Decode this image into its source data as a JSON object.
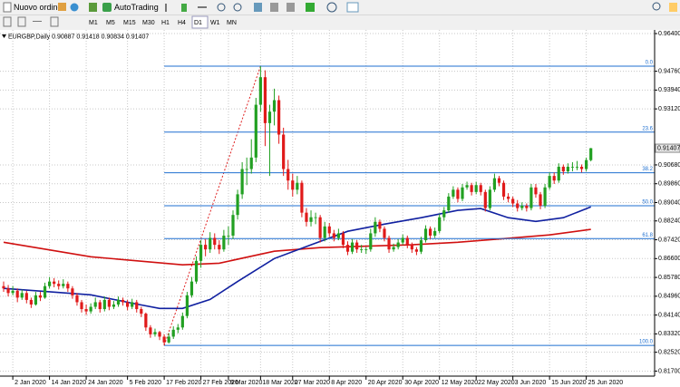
{
  "toolbar": {
    "new_order": "Nuovo ordine",
    "autotrading": "AutoTrading",
    "timeframes": [
      "M1",
      "M5",
      "M15",
      "M30",
      "H1",
      "H4",
      "D1",
      "W1",
      "MN"
    ]
  },
  "chart_data": {
    "type": "candlestick",
    "symbol": "EURGBP,Daily",
    "categories": [
      null,
      null,
      "2 Jan 2020",
      null,
      null,
      null,
      null,
      null,
      null,
      null,
      "14 Jan 2020",
      null,
      null,
      null,
      null,
      null,
      null,
      null,
      "24 Jan 2020",
      null,
      null,
      null,
      null,
      null,
      null,
      null,
      null,
      "5 Feb 2020",
      null,
      null,
      null,
      null,
      null,
      null,
      null,
      "17 Feb 2020",
      null,
      null,
      null,
      null,
      null,
      null,
      null,
      "27 Feb 2020",
      null,
      null,
      null,
      null,
      null,
      "9 Mar 2020",
      null,
      null,
      null,
      null,
      null,
      null,
      "18 Mar 2020",
      null,
      null,
      null,
      null,
      null,
      null,
      "27 Mar 2020",
      null,
      null,
      null,
      null,
      null,
      null,
      null,
      "8 Apr 2020",
      null,
      null,
      null,
      null,
      null,
      null,
      null,
      "20 Apr 2020",
      null,
      null,
      null,
      null,
      null,
      null,
      null,
      "30 Apr 2020",
      null,
      null,
      null,
      null,
      null,
      null,
      null,
      "12 May 2020",
      null,
      null,
      null,
      null,
      null,
      null,
      null,
      "22 May 2020",
      null,
      null,
      null,
      null,
      null,
      null,
      null,
      "3 Jun 2020",
      null,
      null,
      null,
      null,
      null,
      null,
      null,
      "15 Jun 2020",
      null,
      null,
      null,
      null,
      null,
      null,
      null,
      "25 Jun 2020",
      null
    ],
    "candles": [
      [
        0.854,
        0.856,
        0.8515,
        0.853
      ],
      [
        0.853,
        0.8545,
        0.8495,
        0.851
      ],
      [
        0.851,
        0.854,
        0.85,
        0.852
      ],
      [
        0.852,
        0.853,
        0.847,
        0.849
      ],
      [
        0.849,
        0.8525,
        0.848,
        0.851
      ],
      [
        0.851,
        0.852,
        0.8465,
        0.848
      ],
      [
        0.848,
        0.849,
        0.8445,
        0.846
      ],
      [
        0.846,
        0.8515,
        0.8455,
        0.85
      ],
      [
        0.85,
        0.8515,
        0.8475,
        0.849
      ],
      [
        0.849,
        0.8555,
        0.8485,
        0.854
      ],
      [
        0.854,
        0.858,
        0.853,
        0.856
      ],
      [
        0.856,
        0.8575,
        0.8535,
        0.855
      ],
      [
        0.855,
        0.8565,
        0.8525,
        0.854
      ],
      [
        0.854,
        0.857,
        0.853,
        0.855
      ],
      [
        0.855,
        0.856,
        0.8515,
        0.853
      ],
      [
        0.853,
        0.854,
        0.8485,
        0.85
      ],
      [
        0.85,
        0.851,
        0.8455,
        0.847
      ],
      [
        0.847,
        0.848,
        0.8425,
        0.844
      ],
      [
        0.844,
        0.846,
        0.8415,
        0.843
      ],
      [
        0.843,
        0.8465,
        0.842,
        0.845
      ],
      [
        0.845,
        0.849,
        0.844,
        0.847
      ],
      [
        0.847,
        0.848,
        0.8425,
        0.844
      ],
      [
        0.844,
        0.8495,
        0.843,
        0.848
      ],
      [
        0.848,
        0.849,
        0.8435,
        0.845
      ],
      [
        0.845,
        0.8475,
        0.844,
        0.846
      ],
      [
        0.846,
        0.8495,
        0.845,
        0.848
      ],
      [
        0.848,
        0.849,
        0.8455,
        0.847
      ],
      [
        0.847,
        0.848,
        0.8435,
        0.845
      ],
      [
        0.845,
        0.8485,
        0.844,
        0.847
      ],
      [
        0.847,
        0.848,
        0.8425,
        0.844
      ],
      [
        0.844,
        0.845,
        0.8405,
        0.842
      ],
      [
        0.842,
        0.8425,
        0.8345,
        0.836
      ],
      [
        0.836,
        0.837,
        0.8315,
        0.833
      ],
      [
        0.833,
        0.8355,
        0.832,
        0.834
      ],
      [
        0.834,
        0.8345,
        0.8305,
        0.832
      ],
      [
        0.832,
        0.833,
        0.8282,
        0.8295
      ],
      [
        0.8295,
        0.8335,
        0.829,
        0.832
      ],
      [
        0.832,
        0.8365,
        0.831,
        0.835
      ],
      [
        0.835,
        0.8375,
        0.8335,
        0.836
      ],
      [
        0.836,
        0.8425,
        0.835,
        0.841
      ],
      [
        0.841,
        0.8515,
        0.84,
        0.85
      ],
      [
        0.85,
        0.858,
        0.849,
        0.856
      ],
      [
        0.856,
        0.867,
        0.855,
        0.865
      ],
      [
        0.865,
        0.874,
        0.862,
        0.872
      ],
      [
        0.872,
        0.8745,
        0.867,
        0.87
      ],
      [
        0.87,
        0.8775,
        0.8685,
        0.875
      ],
      [
        0.875,
        0.877,
        0.87,
        0.872
      ],
      [
        0.872,
        0.874,
        0.868,
        0.87
      ],
      [
        0.87,
        0.8785,
        0.869,
        0.876
      ],
      [
        0.876,
        0.88,
        0.872,
        0.876
      ],
      [
        0.876,
        0.887,
        0.8745,
        0.885
      ],
      [
        0.885,
        0.896,
        0.883,
        0.894
      ],
      [
        0.894,
        0.908,
        0.892,
        0.905
      ],
      [
        0.905,
        0.91,
        0.898,
        0.905
      ],
      [
        0.905,
        0.918,
        0.903,
        0.91
      ],
      [
        0.91,
        0.936,
        0.908,
        0.933
      ],
      [
        0.933,
        0.9498,
        0.93,
        0.945
      ],
      [
        0.945,
        0.948,
        0.915,
        0.925
      ],
      [
        0.925,
        0.933,
        0.902,
        0.93
      ],
      [
        0.93,
        0.94,
        0.924,
        0.935
      ],
      [
        0.935,
        0.937,
        0.916,
        0.92
      ],
      [
        0.92,
        0.923,
        0.902,
        0.905
      ],
      [
        0.905,
        0.909,
        0.896,
        0.9
      ],
      [
        0.9,
        0.903,
        0.893,
        0.896
      ],
      [
        0.896,
        0.902,
        0.894,
        0.899
      ],
      [
        0.899,
        0.9,
        0.884,
        0.886
      ],
      [
        0.886,
        0.888,
        0.88,
        0.882
      ],
      [
        0.882,
        0.887,
        0.88,
        0.884
      ],
      [
        0.884,
        0.886,
        0.881,
        0.884
      ],
      [
        0.884,
        0.885,
        0.873,
        0.875
      ],
      [
        0.875,
        0.882,
        0.8735,
        0.88
      ],
      [
        0.88,
        0.8815,
        0.8755,
        0.877
      ],
      [
        0.877,
        0.8785,
        0.8735,
        0.875
      ],
      [
        0.875,
        0.879,
        0.874,
        0.877
      ],
      [
        0.877,
        0.878,
        0.8705,
        0.872
      ],
      [
        0.872,
        0.8735,
        0.8675,
        0.869
      ],
      [
        0.869,
        0.8745,
        0.868,
        0.873
      ],
      [
        0.873,
        0.874,
        0.8685,
        0.87
      ],
      [
        0.87,
        0.872,
        0.8685,
        0.87
      ],
      [
        0.87,
        0.871,
        0.868,
        0.87
      ],
      [
        0.87,
        0.879,
        0.869,
        0.877
      ],
      [
        0.877,
        0.884,
        0.8755,
        0.882
      ],
      [
        0.882,
        0.883,
        0.8775,
        0.879
      ],
      [
        0.879,
        0.88,
        0.8735,
        0.875
      ],
      [
        0.875,
        0.876,
        0.8685,
        0.87
      ],
      [
        0.87,
        0.8725,
        0.869,
        0.871
      ],
      [
        0.871,
        0.8745,
        0.87,
        0.873
      ],
      [
        0.873,
        0.8765,
        0.872,
        0.875
      ],
      [
        0.875,
        0.876,
        0.8705,
        0.872
      ],
      [
        0.872,
        0.873,
        0.8685,
        0.87
      ],
      [
        0.87,
        0.871,
        0.8675,
        0.869
      ],
      [
        0.869,
        0.8755,
        0.868,
        0.874
      ],
      [
        0.874,
        0.8805,
        0.873,
        0.879
      ],
      [
        0.879,
        0.88,
        0.8745,
        0.876
      ],
      [
        0.876,
        0.8795,
        0.875,
        0.878
      ],
      [
        0.878,
        0.8855,
        0.877,
        0.884
      ],
      [
        0.884,
        0.8885,
        0.8825,
        0.887
      ],
      [
        0.887,
        0.8945,
        0.886,
        0.893
      ],
      [
        0.893,
        0.8975,
        0.892,
        0.896
      ],
      [
        0.896,
        0.897,
        0.8905,
        0.892
      ],
      [
        0.892,
        0.8985,
        0.891,
        0.897
      ],
      [
        0.897,
        0.8995,
        0.896,
        0.898
      ],
      [
        0.898,
        0.899,
        0.8935,
        0.895
      ],
      [
        0.895,
        0.8995,
        0.894,
        0.898
      ],
      [
        0.898,
        0.899,
        0.8935,
        0.895
      ],
      [
        0.895,
        0.896,
        0.8865,
        0.888
      ],
      [
        0.888,
        0.8975,
        0.887,
        0.896
      ],
      [
        0.896,
        0.903,
        0.895,
        0.901
      ],
      [
        0.901,
        0.902,
        0.8975,
        0.899
      ],
      [
        0.899,
        0.9,
        0.8915,
        0.893
      ],
      [
        0.893,
        0.8945,
        0.8905,
        0.892
      ],
      [
        0.892,
        0.893,
        0.8885,
        0.89
      ],
      [
        0.89,
        0.8915,
        0.8865,
        0.888
      ],
      [
        0.888,
        0.8905,
        0.887,
        0.889
      ],
      [
        0.889,
        0.89,
        0.8865,
        0.888
      ],
      [
        0.888,
        0.8985,
        0.887,
        0.897
      ],
      [
        0.897,
        0.8985,
        0.8925,
        0.894
      ],
      [
        0.894,
        0.895,
        0.8875,
        0.889
      ],
      [
        0.889,
        0.8985,
        0.888,
        0.897
      ],
      [
        0.897,
        0.9035,
        0.896,
        0.902
      ],
      [
        0.902,
        0.9035,
        0.8985,
        0.9
      ],
      [
        0.9,
        0.9075,
        0.899,
        0.906
      ],
      [
        0.906,
        0.907,
        0.9025,
        0.904
      ],
      [
        0.904,
        0.9075,
        0.903,
        0.906
      ],
      [
        0.906,
        0.908,
        0.904,
        0.906
      ],
      [
        0.906,
        0.9085,
        0.9045,
        0.906
      ],
      [
        0.906,
        0.907,
        0.9035,
        0.905
      ],
      [
        0.905,
        0.91,
        0.904,
        0.9089
      ],
      [
        0.90887,
        0.91418,
        0.90834,
        0.91407
      ]
    ],
    "up_color": "#22a022",
    "down_color": "#e01a1a",
    "moving_averages": [
      {
        "color": "#d01010",
        "x": [
          0,
          19,
          39,
          47,
          59,
          69,
          89,
          99,
          109,
          119,
          128
        ],
        "values": [
          0.8731,
          0.8668,
          0.8633,
          0.864,
          0.8692,
          0.8708,
          0.872,
          0.8731,
          0.8747,
          0.8763,
          0.8787
        ]
      },
      {
        "color": "#1020a0",
        "x": [
          0,
          19,
          29,
          34,
          39,
          45,
          51,
          59,
          67,
          75,
          83,
          91,
          99,
          104,
          110,
          116,
          122,
          128
        ],
        "values": [
          0.853,
          0.8502,
          0.8462,
          0.8443,
          0.8443,
          0.8482,
          0.856,
          0.866,
          0.872,
          0.8779,
          0.881,
          0.8838,
          0.887,
          0.8878,
          0.8838,
          0.8822,
          0.8838,
          0.8885
        ]
      }
    ],
    "fibo": {
      "color": "#1f6fd0",
      "levels": [
        {
          "value": 0.9498,
          "label": "0.0"
        },
        {
          "value": 0.9211,
          "label": "23.6"
        },
        {
          "value": 0.9034,
          "label": "38.2"
        },
        {
          "value": 0.889,
          "label": "50.0"
        },
        {
          "value": 0.8747,
          "label": "61.8"
        },
        {
          "value": 0.8282,
          "label": "100.0"
        }
      ]
    },
    "ylim": [
      0.8152,
      0.9656
    ],
    "yticks": [
      {
        "value": 0.964,
        "label": "0.96400"
      },
      {
        "value": 0.9476,
        "label": "0.94760"
      },
      {
        "value": 0.9394,
        "label": "0.93940"
      },
      {
        "value": 0.9312,
        "label": "0.93120"
      },
      {
        "value": 0.9068,
        "label": "0.90680"
      },
      {
        "value": 0.8986,
        "label": "0.89860"
      },
      {
        "value": 0.8904,
        "label": "0.89040"
      },
      {
        "value": 0.8824,
        "label": "0.88240"
      },
      {
        "value": 0.8742,
        "label": "0.87420"
      },
      {
        "value": 0.866,
        "label": "0.86600"
      },
      {
        "value": 0.8578,
        "label": "0.85780"
      },
      {
        "value": 0.8496,
        "label": "0.84960"
      },
      {
        "value": 0.8414,
        "label": "0.84140"
      },
      {
        "value": 0.8332,
        "label": "0.83320"
      },
      {
        "value": 0.8252,
        "label": "0.82520"
      },
      {
        "value": 0.817,
        "label": "0.81700"
      }
    ],
    "grid": true
  }
}
